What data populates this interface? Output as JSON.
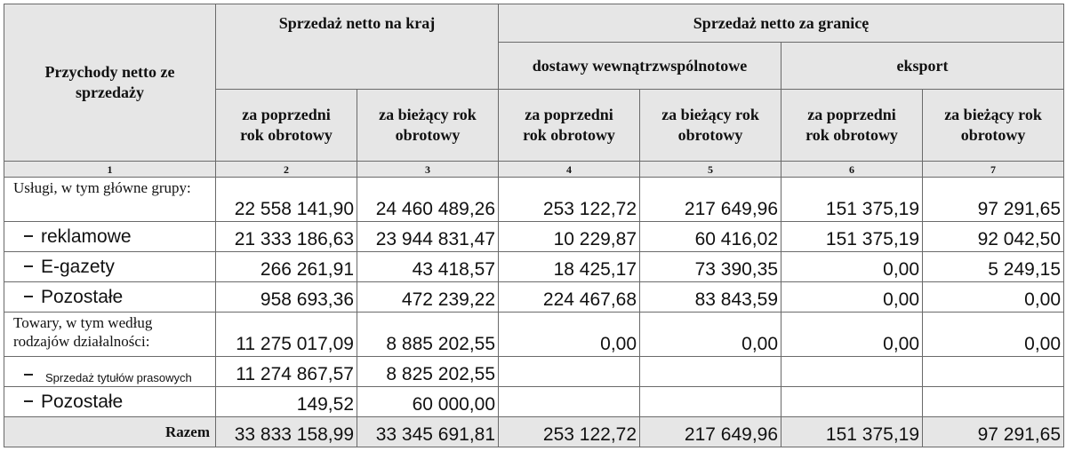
{
  "header": {
    "row_label": "Przychody netto ze sprzedaży",
    "domestic": "Sprzedaż netto na kraj",
    "abroad": "Sprzedaż netto za granicę",
    "intra_eu": "dostawy wewnątrzwspólnotowe",
    "export": "eksport",
    "prev_year": "za poprzedni rok obrotowy",
    "curr_year": "za bieżący rok obrotowy"
  },
  "column_numbers": [
    "1",
    "2",
    "3",
    "4",
    "5",
    "6",
    "7"
  ],
  "rows": [
    {
      "label": "Usługi, w tym główne grupy:",
      "values": [
        "22 558 141,90",
        "24 460 489,26",
        "253 122,72",
        "217 649,96",
        "151 375,19",
        "97 291,65"
      ]
    },
    {
      "label": "reklamowe",
      "values": [
        "21 333 186,63",
        "23 944 831,47",
        "10 229,87",
        "60 416,02",
        "151 375,19",
        "92 042,50"
      ]
    },
    {
      "label": "E-gazety",
      "values": [
        "266 261,91",
        "43 418,57",
        "18 425,17",
        "73 390,35",
        "0,00",
        "5 249,15"
      ]
    },
    {
      "label": "Pozostałe",
      "values": [
        "958 693,36",
        "472 239,22",
        "224 467,68",
        "83 843,59",
        "0,00",
        "0,00"
      ]
    },
    {
      "label": "Towary, w tym według rodzajów działalności:",
      "values": [
        "11 275 017,09",
        "8 885 202,55",
        "0,00",
        "0,00",
        "0,00",
        "0,00"
      ]
    },
    {
      "label": "Sprzedaż tytułów prasowych",
      "values": [
        "11 274 867,57",
        "8 825 202,55"
      ]
    },
    {
      "label": "Pozostałe",
      "values": [
        "149,52",
        "60 000,00"
      ]
    }
  ],
  "total": {
    "label": "Razem",
    "values": [
      "33 833 158,99",
      "33 345 691,81",
      "253 122,72",
      "217 649,96",
      "151 375,19",
      "97 291,65"
    ]
  }
}
